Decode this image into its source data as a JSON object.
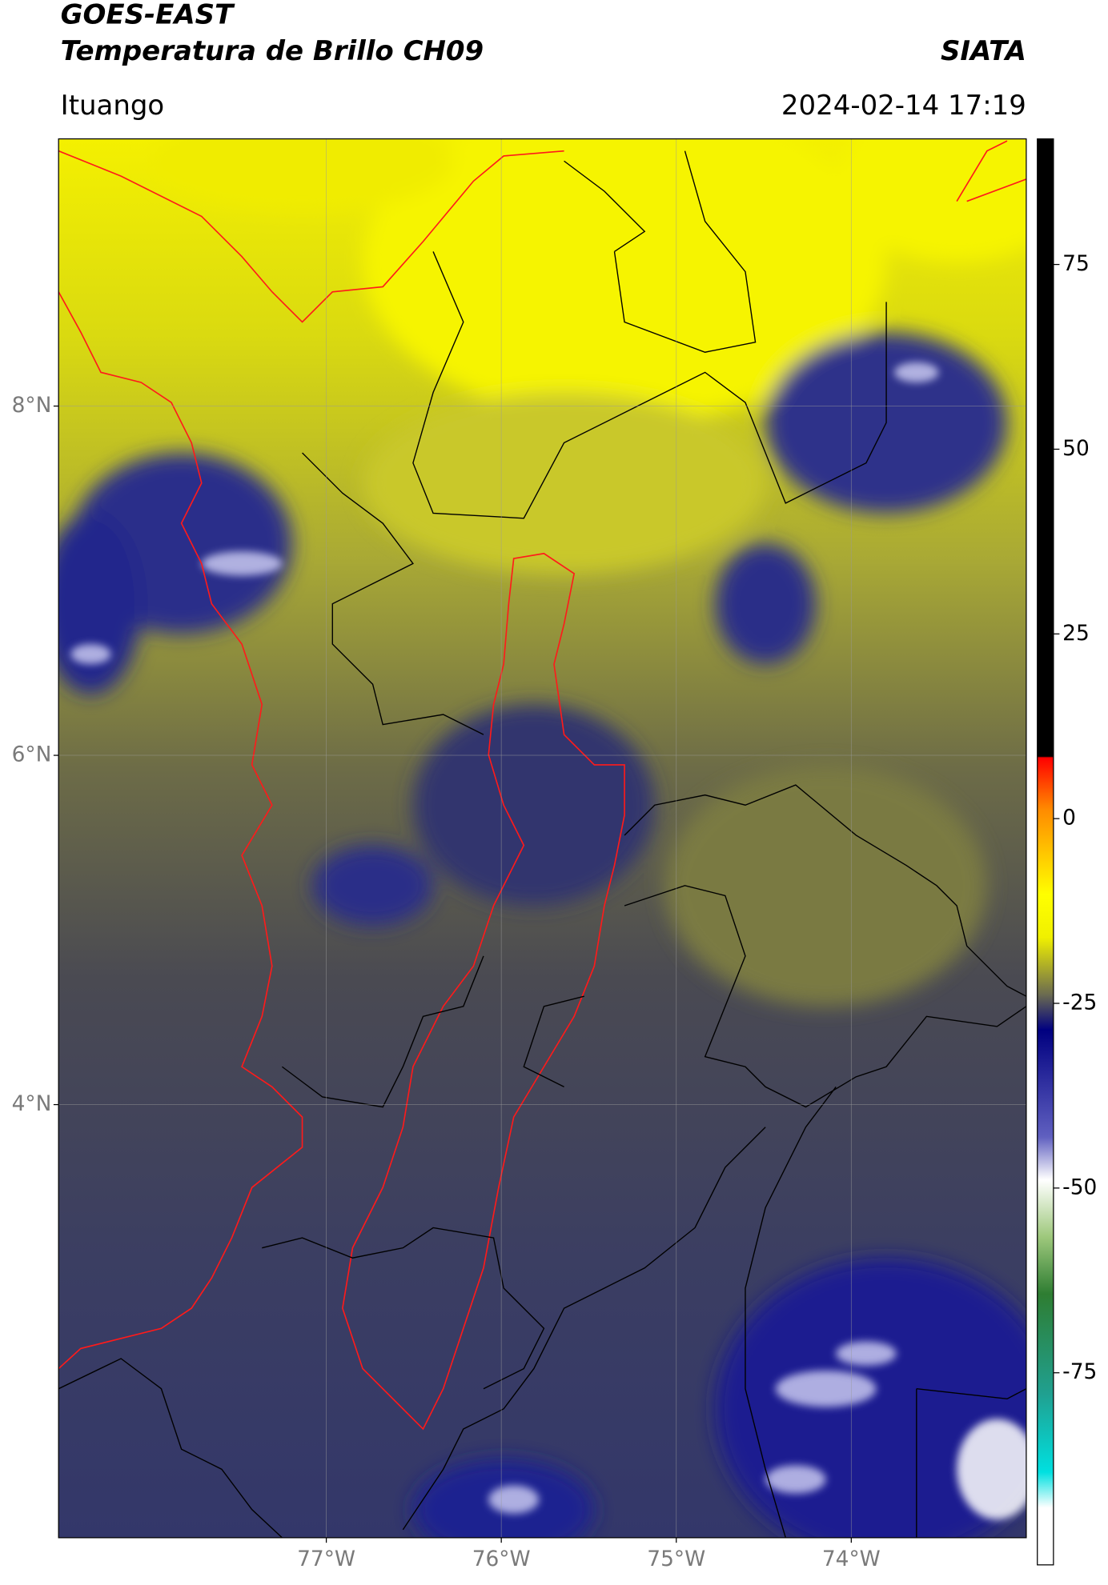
{
  "chart_data": {
    "type": "map",
    "title": "GOES-EAST",
    "subtitle": "Temperatura de Brillo CH09",
    "source": "SIATA",
    "region": "Ituango",
    "timestamp": "2024-02-14 17:19",
    "xlim": [
      -78.53,
      -73.0
    ],
    "ylim": [
      1.52,
      9.53
    ],
    "xticks": [
      {
        "value": -77,
        "label": "77°W"
      },
      {
        "value": -76,
        "label": "76°W"
      },
      {
        "value": -75,
        "label": "75°W"
      },
      {
        "value": -74,
        "label": "74°W"
      }
    ],
    "yticks": [
      {
        "value": 8,
        "label": "8°N"
      },
      {
        "value": 6,
        "label": "6°N"
      },
      {
        "value": 4,
        "label": "4°N"
      }
    ],
    "grid": true,
    "colorbar": {
      "lim": [
        -101,
        92
      ],
      "ticks": [
        75,
        50,
        25,
        0,
        -25,
        -50,
        -75
      ]
    }
  }
}
